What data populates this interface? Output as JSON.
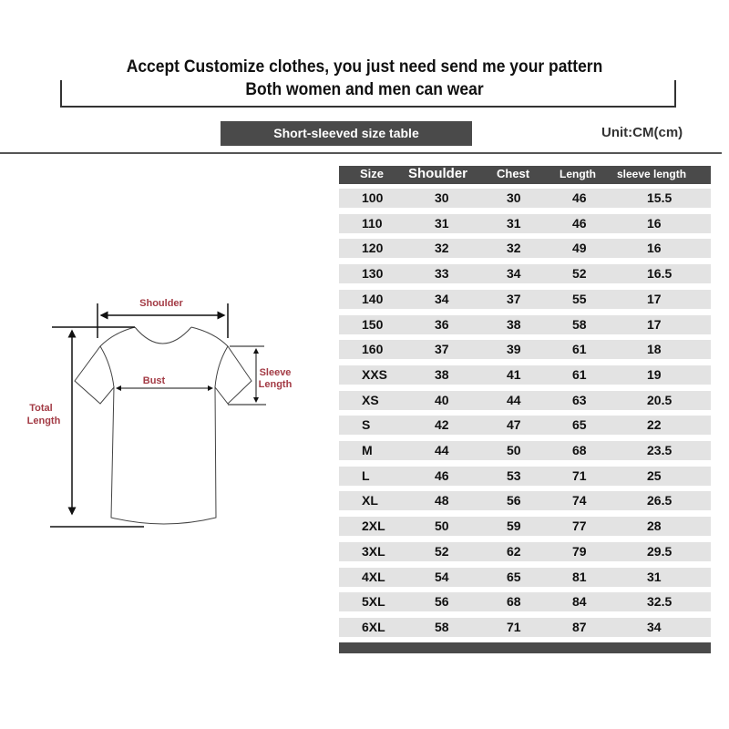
{
  "banner": {
    "line1": "Accept Customize clothes, you just need send me your pattern",
    "line2": "Both women and men can wear"
  },
  "table_title": "Short-sleeved size  table",
  "unit": "Unit:CM(cm)",
  "diagram": {
    "shoulder": "Shoulder",
    "bust": "Bust",
    "sleeve_length_1": "Sleeve",
    "sleeve_length_2": "Length",
    "total_length_1": "Total",
    "total_length_2": "Length",
    "label_color": "#a33b45"
  },
  "table": {
    "columns": [
      "Size",
      "Shoulder",
      "Chest",
      "Length",
      "sleeve length"
    ],
    "rows": [
      [
        "100",
        "30",
        "30",
        "46",
        "15.5"
      ],
      [
        "110",
        "31",
        "31",
        "46",
        "16"
      ],
      [
        "120",
        "32",
        "32",
        "49",
        "16"
      ],
      [
        "130",
        "33",
        "34",
        "52",
        "16.5"
      ],
      [
        "140",
        "34",
        "37",
        "55",
        "17"
      ],
      [
        "150",
        "36",
        "38",
        "58",
        "17"
      ],
      [
        "160",
        "37",
        "39",
        "61",
        "18"
      ],
      [
        "XXS",
        "38",
        "41",
        "61",
        "19"
      ],
      [
        "XS",
        "40",
        "44",
        "63",
        "20.5"
      ],
      [
        "S",
        "42",
        "47",
        "65",
        "22"
      ],
      [
        "M",
        "44",
        "50",
        "68",
        "23.5"
      ],
      [
        "L",
        "46",
        "53",
        "71",
        "25"
      ],
      [
        "XL",
        "48",
        "56",
        "74",
        "26.5"
      ],
      [
        "2XL",
        "50",
        "59",
        "77",
        "28"
      ],
      [
        "3XL",
        "52",
        "62",
        "79",
        "29.5"
      ],
      [
        "4XL",
        "54",
        "65",
        "81",
        "31"
      ],
      [
        "5XL",
        "56",
        "68",
        "84",
        "32.5"
      ],
      [
        "6XL",
        "58",
        "71",
        "87",
        "34"
      ]
    ]
  }
}
